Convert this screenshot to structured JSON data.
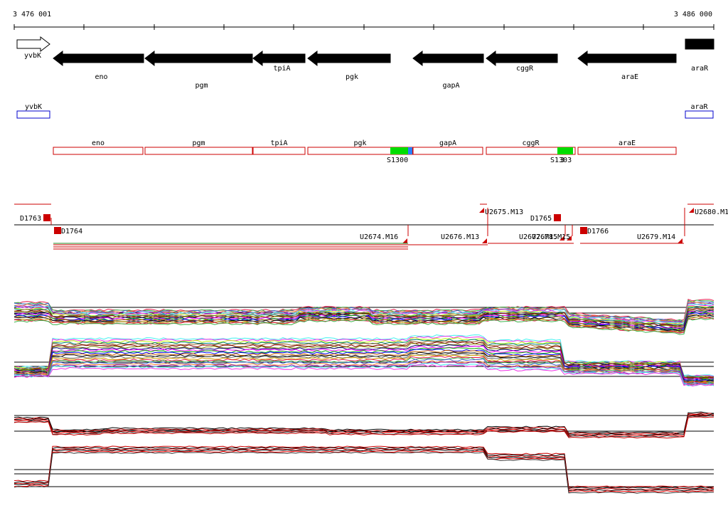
{
  "coords": {
    "start": "3 476 001",
    "end": "3 486 000"
  },
  "genes_top": [
    {
      "name": "yvbK",
      "strand": "+",
      "style": "outline"
    },
    {
      "name": "eno",
      "strand": "-",
      "style": "filled"
    },
    {
      "name": "pgm",
      "strand": "-",
      "style": "filled"
    },
    {
      "name": "tpiA",
      "strand": "-",
      "style": "filled"
    },
    {
      "name": "pgk",
      "strand": "-",
      "style": "filled"
    },
    {
      "name": "gapA",
      "strand": "-",
      "style": "filled"
    },
    {
      "name": "cggR",
      "strand": "-",
      "style": "filled"
    },
    {
      "name": "araE",
      "strand": "-",
      "style": "filled"
    },
    {
      "name": "araR",
      "strand": "+",
      "style": "filled"
    }
  ],
  "blue_boxes": [
    "yvbK",
    "araR"
  ],
  "red_boxes": [
    "eno",
    "pgm",
    "tpiA",
    "pgk",
    "gapA",
    "cggR",
    "araE"
  ],
  "green_sites": [
    "S1300",
    "S1303"
  ],
  "segments": [
    "D1763",
    "D1764",
    "U2674.M16",
    "U2676.M13",
    "U2675.M13",
    "D1765",
    "U2677.M15",
    "U2678.M15",
    "D1766",
    "U2679.M14",
    "U2680.M1"
  ],
  "colors": {
    "gene": "#000000",
    "blue": "#0000cc",
    "red": "#cc0000",
    "green": "#00dd00",
    "site_blue": "#2a7fff"
  }
}
